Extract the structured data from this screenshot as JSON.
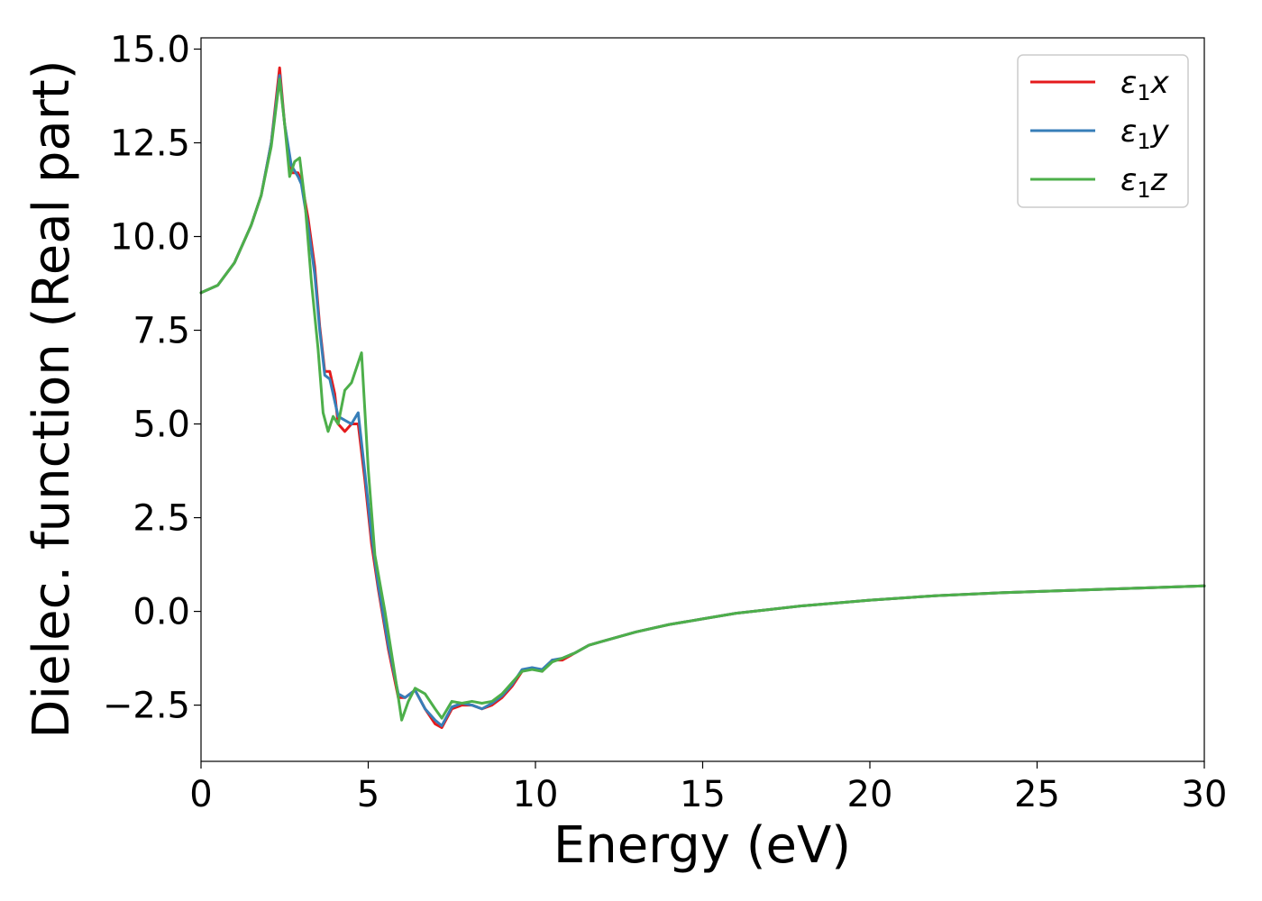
{
  "chart_data": {
    "type": "line",
    "xlabel": "Energy (eV)",
    "ylabel": "Dielec. function (Real part)",
    "xlim": [
      0,
      30
    ],
    "ylim": [
      -4.0,
      15.3
    ],
    "xticks": [
      0,
      5,
      10,
      15,
      20,
      25,
      30
    ],
    "yticks": [
      -2.5,
      0.0,
      2.5,
      5.0,
      7.5,
      10.0,
      12.5,
      15.0
    ],
    "xtick_labels": [
      "0",
      "5",
      "10",
      "15",
      "20",
      "25",
      "30"
    ],
    "ytick_labels": [
      "−2.5",
      "0.0",
      "2.5",
      "5.0",
      "7.5",
      "10.0",
      "12.5",
      "15.0"
    ],
    "grid": false,
    "legend_position": "top-right",
    "series": [
      {
        "name": "ε₁x",
        "legend_main": "ε",
        "legend_sub": "1",
        "legend_tail": "x",
        "color": "#e41a1c",
        "x": [
          0,
          0.5,
          1.0,
          1.5,
          1.8,
          2.1,
          2.35,
          2.5,
          2.7,
          2.9,
          3.0,
          3.2,
          3.4,
          3.55,
          3.7,
          3.85,
          4.0,
          4.1,
          4.3,
          4.5,
          4.7,
          4.9,
          5.1,
          5.3,
          5.6,
          5.9,
          6.1,
          6.4,
          6.7,
          7.0,
          7.2,
          7.5,
          7.8,
          8.1,
          8.4,
          8.7,
          9.0,
          9.3,
          9.6,
          9.9,
          10.2,
          10.5,
          10.8,
          11.2,
          11.6,
          12.0,
          13.0,
          14.0,
          15.0,
          16.0,
          17.0,
          18.0,
          20.0,
          22.0,
          24.0,
          26.0,
          28.0,
          30.0
        ],
        "y": [
          8.5,
          8.7,
          9.3,
          10.3,
          11.1,
          12.5,
          14.5,
          13.0,
          11.7,
          11.7,
          11.5,
          10.5,
          9.2,
          7.6,
          6.4,
          6.4,
          5.8,
          5.0,
          4.8,
          5.0,
          5.0,
          3.5,
          1.8,
          0.6,
          -1.0,
          -2.3,
          -2.3,
          -2.1,
          -2.6,
          -3.0,
          -3.1,
          -2.6,
          -2.5,
          -2.5,
          -2.6,
          -2.5,
          -2.3,
          -2.0,
          -1.6,
          -1.5,
          -1.6,
          -1.3,
          -1.3,
          -1.1,
          -0.9,
          -0.8,
          -0.55,
          -0.35,
          -0.2,
          -0.05,
          0.05,
          0.15,
          0.3,
          0.42,
          0.5,
          0.56,
          0.62,
          0.68
        ]
      },
      {
        "name": "ε₁y",
        "legend_main": "ε",
        "legend_sub": "1",
        "legend_tail": "y",
        "color": "#377eb8",
        "x": [
          0,
          0.5,
          1.0,
          1.5,
          1.8,
          2.1,
          2.35,
          2.5,
          2.7,
          2.9,
          3.0,
          3.2,
          3.4,
          3.55,
          3.7,
          3.85,
          4.0,
          4.1,
          4.3,
          4.5,
          4.7,
          4.9,
          5.1,
          5.3,
          5.6,
          5.9,
          6.1,
          6.4,
          6.7,
          7.0,
          7.2,
          7.5,
          7.8,
          8.1,
          8.4,
          8.7,
          9.0,
          9.3,
          9.6,
          9.9,
          10.2,
          10.5,
          10.8,
          11.2,
          11.6,
          12.0,
          13.0,
          14.0,
          15.0,
          16.0,
          17.0,
          18.0,
          20.0,
          22.0,
          24.0,
          26.0,
          28.0,
          30.0
        ],
        "y": [
          8.5,
          8.7,
          9.3,
          10.3,
          11.1,
          12.5,
          14.3,
          13.0,
          11.9,
          11.6,
          11.4,
          10.3,
          9.0,
          7.5,
          6.3,
          6.2,
          5.6,
          5.2,
          5.1,
          5.0,
          5.3,
          3.7,
          2.0,
          0.7,
          -0.9,
          -2.2,
          -2.3,
          -2.1,
          -2.6,
          -2.9,
          -3.05,
          -2.55,
          -2.45,
          -2.5,
          -2.6,
          -2.45,
          -2.25,
          -1.95,
          -1.55,
          -1.5,
          -1.55,
          -1.3,
          -1.25,
          -1.1,
          -0.9,
          -0.8,
          -0.55,
          -0.35,
          -0.2,
          -0.05,
          0.05,
          0.15,
          0.3,
          0.42,
          0.5,
          0.56,
          0.62,
          0.68
        ]
      },
      {
        "name": "ε₁z",
        "legend_main": "ε",
        "legend_sub": "1",
        "legend_tail": "z",
        "color": "#4daf4a",
        "x": [
          0,
          0.5,
          1.0,
          1.5,
          1.8,
          2.1,
          2.35,
          2.5,
          2.65,
          2.8,
          2.95,
          3.1,
          3.3,
          3.5,
          3.65,
          3.8,
          3.95,
          4.1,
          4.3,
          4.5,
          4.65,
          4.8,
          5.0,
          5.2,
          5.5,
          5.8,
          6.0,
          6.2,
          6.4,
          6.7,
          7.0,
          7.2,
          7.5,
          7.8,
          8.1,
          8.4,
          8.7,
          9.0,
          9.3,
          9.6,
          9.9,
          10.2,
          10.5,
          10.8,
          11.2,
          11.6,
          12.0,
          13.0,
          14.0,
          15.0,
          16.0,
          17.0,
          18.0,
          20.0,
          22.0,
          24.0,
          26.0,
          28.0,
          30.0
        ],
        "y": [
          8.5,
          8.7,
          9.3,
          10.3,
          11.1,
          12.4,
          14.2,
          13.0,
          11.6,
          12.0,
          12.1,
          11.0,
          8.8,
          7.0,
          5.3,
          4.8,
          5.2,
          5.0,
          5.9,
          6.1,
          6.5,
          6.9,
          3.8,
          1.5,
          0.0,
          -1.7,
          -2.9,
          -2.4,
          -2.05,
          -2.2,
          -2.6,
          -2.85,
          -2.4,
          -2.45,
          -2.4,
          -2.45,
          -2.4,
          -2.2,
          -1.9,
          -1.6,
          -1.55,
          -1.6,
          -1.35,
          -1.25,
          -1.1,
          -0.9,
          -0.8,
          -0.55,
          -0.35,
          -0.2,
          -0.05,
          0.05,
          0.15,
          0.3,
          0.42,
          0.5,
          0.56,
          0.62,
          0.68
        ]
      }
    ]
  }
}
